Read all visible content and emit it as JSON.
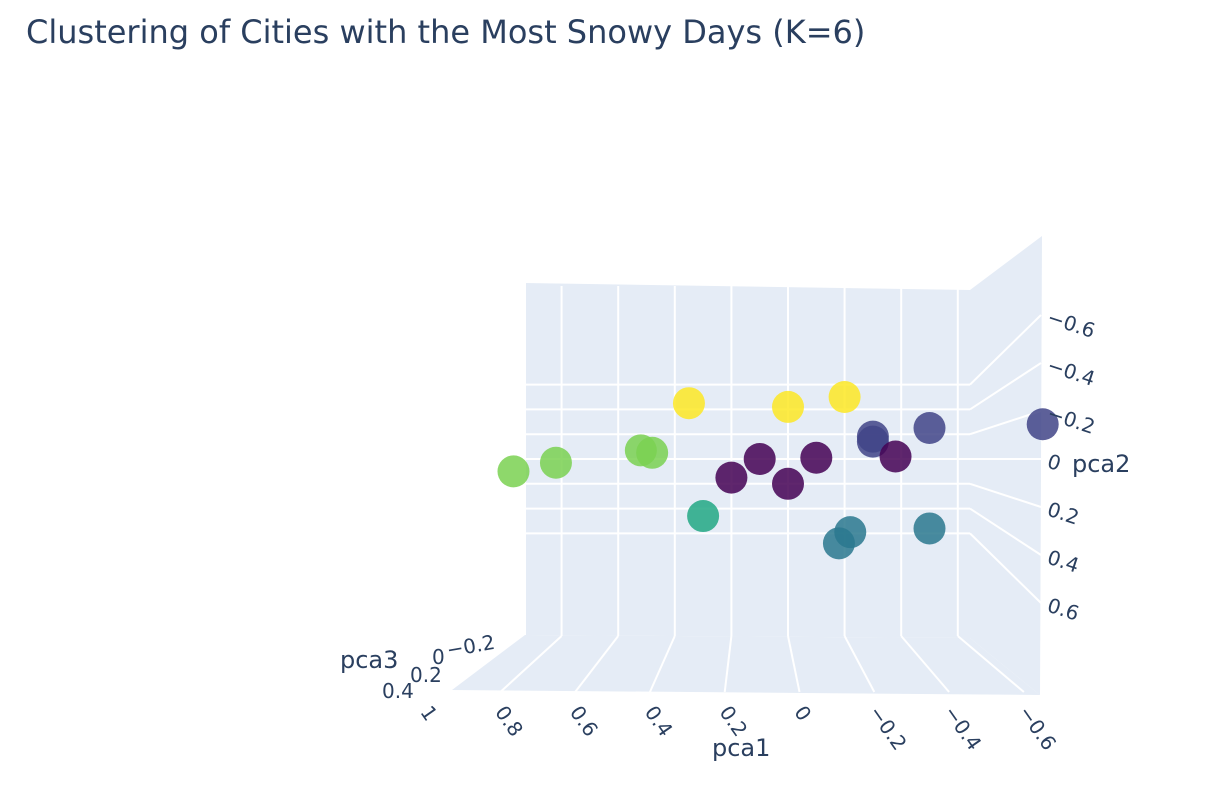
{
  "chart_data": {
    "type": "scatter",
    "mode": "3d",
    "title": "Clustering of Cities with the Most Snowy Days (K=6)",
    "axes": {
      "x": {
        "label": "pca1",
        "ticks": [
          "1",
          "0.8",
          "0.6",
          "0.4",
          "0.2",
          "0",
          "−0.2",
          "−0.4",
          "−0.6"
        ]
      },
      "y": {
        "label": "pca2",
        "ticks": [
          "−0.6",
          "−0.4",
          "−0.2",
          "0",
          "0.2",
          "0.4",
          "0.6"
        ]
      },
      "z": {
        "label": "pca3",
        "ticks": [
          "−0.2",
          "0",
          "0.2",
          "0.4"
        ]
      }
    },
    "background_color": "#e5ecf6",
    "grid": true,
    "points": [
      {
        "pca1": 0.35,
        "pca2": -0.45,
        "pca3": 0.0,
        "cluster": 5
      },
      {
        "pca1": 0.0,
        "pca2": -0.42,
        "pca3": 0.0,
        "cluster": 5
      },
      {
        "pca1": -0.2,
        "pca2": -0.5,
        "pca3": 0.0,
        "cluster": 5
      },
      {
        "pca1": -0.5,
        "pca2": -0.25,
        "pca3": 0.0,
        "cluster": 1
      },
      {
        "pca1": -0.9,
        "pca2": -0.28,
        "pca3": 0.0,
        "cluster": 1
      },
      {
        "pca1": -0.3,
        "pca2": -0.18,
        "pca3": 0.0,
        "cluster": 1
      },
      {
        "pca1": -0.3,
        "pca2": -0.14,
        "pca3": 0.0,
        "cluster": 1
      },
      {
        "pca1": 0.52,
        "pca2": -0.07,
        "pca3": 0.0,
        "cluster": 4
      },
      {
        "pca1": 0.48,
        "pca2": -0.05,
        "pca3": 0.0,
        "cluster": 4
      },
      {
        "pca1": 0.82,
        "pca2": 0.03,
        "pca3": 0.0,
        "cluster": 4
      },
      {
        "pca1": 0.97,
        "pca2": 0.1,
        "pca3": 0.0,
        "cluster": 4
      },
      {
        "pca1": 0.1,
        "pca2": 0.0,
        "pca3": 0.0,
        "cluster": 0
      },
      {
        "pca1": -0.1,
        "pca2": -0.01,
        "pca3": 0.0,
        "cluster": 0
      },
      {
        "pca1": -0.38,
        "pca2": -0.02,
        "pca3": 0.0,
        "cluster": 0
      },
      {
        "pca1": 0.2,
        "pca2": 0.15,
        "pca3": 0.0,
        "cluster": 0
      },
      {
        "pca1": 0.0,
        "pca2": 0.2,
        "pca3": 0.0,
        "cluster": 0
      },
      {
        "pca1": 0.3,
        "pca2": 0.46,
        "pca3": 0.0,
        "cluster": 3
      },
      {
        "pca1": -0.22,
        "pca2": 0.59,
        "pca3": 0.0,
        "cluster": 2
      },
      {
        "pca1": -0.5,
        "pca2": 0.56,
        "pca3": 0.0,
        "cluster": 2
      },
      {
        "pca1": -0.18,
        "pca2": 0.68,
        "pca3": 0.0,
        "cluster": 2
      }
    ],
    "cluster_colors": [
      "#440154",
      "#414487",
      "#2a788e",
      "#22a884",
      "#7ad151",
      "#fde725"
    ]
  },
  "title": "Clustering of Cities with the Most Snowy Days (K=6)"
}
